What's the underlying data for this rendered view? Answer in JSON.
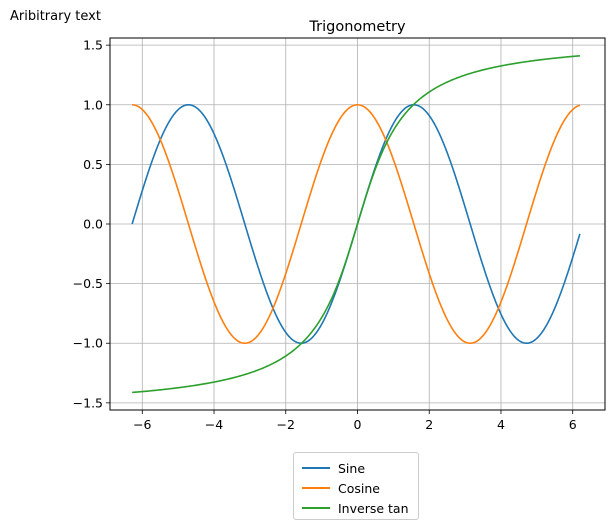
{
  "annotation": "Aribitrary text",
  "chart_data": {
    "type": "line",
    "title": "Trigonometry",
    "xlabel": "",
    "ylabel": "",
    "xlim": [
      -6.9,
      6.9
    ],
    "ylim": [
      -1.56,
      1.56
    ],
    "xticks": [
      -6,
      -4,
      -2,
      0,
      2,
      4,
      6
    ],
    "xtick_labels": [
      "−6",
      "−4",
      "−2",
      "0",
      "2",
      "4",
      "6"
    ],
    "yticks": [
      -1.5,
      -1.0,
      -0.5,
      0.0,
      0.5,
      1.0,
      1.5
    ],
    "ytick_labels": [
      "−1.5",
      "−1.0",
      "−0.5",
      "0.0",
      "0.5",
      "1.0",
      "1.5"
    ],
    "grid": true,
    "legend_position": "below plot, centered",
    "x_range": [
      -6.283,
      6.2
    ],
    "series": [
      {
        "name": "Sine",
        "function": "sin(x)",
        "color": "#1f77b4",
        "sample_points": [
          [
            -6.28,
            0.0
          ],
          [
            -4.71,
            1.0
          ],
          [
            -3.14,
            0.0
          ],
          [
            -1.57,
            -1.0
          ],
          [
            0.0,
            0.0
          ],
          [
            1.57,
            1.0
          ],
          [
            3.14,
            0.0
          ],
          [
            4.71,
            -1.0
          ],
          [
            6.2,
            -0.08
          ]
        ]
      },
      {
        "name": "Cosine",
        "function": "cos(x)",
        "color": "#ff7f0e",
        "sample_points": [
          [
            -6.28,
            1.0
          ],
          [
            -4.71,
            0.0
          ],
          [
            -3.14,
            -1.0
          ],
          [
            -1.57,
            0.0
          ],
          [
            0.0,
            1.0
          ],
          [
            1.57,
            0.0
          ],
          [
            3.14,
            -1.0
          ],
          [
            4.71,
            0.0
          ],
          [
            6.2,
            1.0
          ]
        ]
      },
      {
        "name": "Inverse tan",
        "function": "atan(x)",
        "color": "#2ca02c",
        "sample_points": [
          [
            -6.28,
            -1.41
          ],
          [
            -4.0,
            -1.33
          ],
          [
            -2.0,
            -1.11
          ],
          [
            -1.0,
            -0.79
          ],
          [
            0.0,
            0.0
          ],
          [
            1.0,
            0.79
          ],
          [
            2.0,
            1.11
          ],
          [
            4.0,
            1.33
          ],
          [
            6.2,
            1.41
          ]
        ]
      }
    ]
  }
}
